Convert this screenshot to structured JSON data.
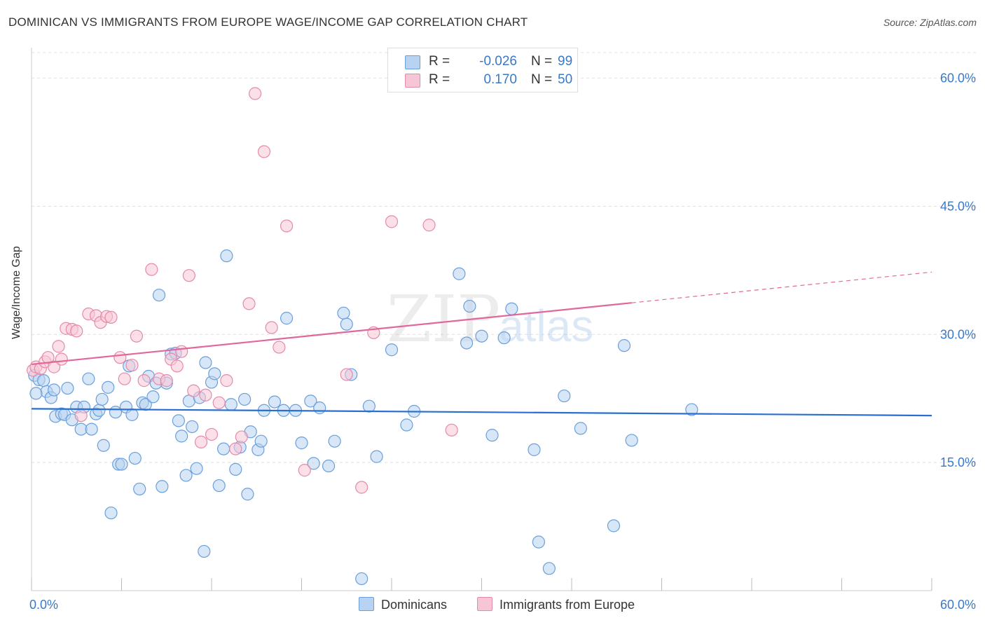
{
  "title": "DOMINICAN VS IMMIGRANTS FROM EUROPE WAGE/INCOME GAP CORRELATION CHART",
  "source": "Source: ZipAtlas.com",
  "watermark": {
    "part1": "ZIP",
    "part2": "atlas"
  },
  "correlation": {
    "rows": [
      {
        "r_label": "R =",
        "r_value": "-0.026",
        "n_label": "N =",
        "n_value": "99"
      },
      {
        "r_label": "R =",
        "r_value": "0.170",
        "n_label": "N =",
        "n_value": "50"
      }
    ]
  },
  "legend": {
    "items": [
      {
        "label": "Dominicans"
      },
      {
        "label": "Immigrants from Europe"
      }
    ]
  },
  "colors": {
    "blue_fill": "#b8d3f1",
    "blue_stroke": "#6a9fdc",
    "blue_line": "#2a6fd0",
    "pink_fill": "#f7c6d6",
    "pink_stroke": "#e58aaa",
    "pink_line": "#e0689a",
    "tick_text": "#3a78c9",
    "grid": "#e0e0e0"
  },
  "chart_data": {
    "type": "scatter",
    "title": "DOMINICAN VS IMMIGRANTS FROM EUROPE WAGE/INCOME GAP CORRELATION CHART",
    "xlabel": "",
    "ylabel": "Wage/Income Gap",
    "xlim": [
      0,
      60
    ],
    "ylim": [
      0,
      63
    ],
    "x_tick_labels": [
      "0.0%",
      "60.0%"
    ],
    "y_ticks": [
      15,
      30,
      45,
      60
    ],
    "y_tick_labels": [
      "15.0%",
      "30.0%",
      "45.0%",
      "60.0%"
    ],
    "grid": true,
    "legend_position": "bottom-center",
    "series": [
      {
        "name": "Dominicans",
        "color": "#6a9fdc",
        "trend": {
          "x": [
            0,
            60
          ],
          "y": [
            21.3,
            20.5
          ]
        },
        "points": [
          [
            0.2,
            25.2
          ],
          [
            0.5,
            24.7
          ],
          [
            0.8,
            24.6
          ],
          [
            1.0,
            23.3
          ],
          [
            1.3,
            22.6
          ],
          [
            1.5,
            23.5
          ],
          [
            1.6,
            20.4
          ],
          [
            2.0,
            20.7
          ],
          [
            2.2,
            20.6
          ],
          [
            2.4,
            23.7
          ],
          [
            2.7,
            20.0
          ],
          [
            3.0,
            21.5
          ],
          [
            3.3,
            18.9
          ],
          [
            3.5,
            21.5
          ],
          [
            3.8,
            24.8
          ],
          [
            4.0,
            18.9
          ],
          [
            4.3,
            20.7
          ],
          [
            4.5,
            21.1
          ],
          [
            4.7,
            22.4
          ],
          [
            4.8,
            17.0
          ],
          [
            5.1,
            23.8
          ],
          [
            5.3,
            9.1
          ],
          [
            5.6,
            20.9
          ],
          [
            5.8,
            14.8
          ],
          [
            6.0,
            14.8
          ],
          [
            6.3,
            21.5
          ],
          [
            6.5,
            26.3
          ],
          [
            6.7,
            20.6
          ],
          [
            6.9,
            15.5
          ],
          [
            7.2,
            11.9
          ],
          [
            7.4,
            22.0
          ],
          [
            7.6,
            21.8
          ],
          [
            7.8,
            25.1
          ],
          [
            8.1,
            22.7
          ],
          [
            8.3,
            24.3
          ],
          [
            8.5,
            34.6
          ],
          [
            8.7,
            12.2
          ],
          [
            9.0,
            24.3
          ],
          [
            9.3,
            27.7
          ],
          [
            9.6,
            27.8
          ],
          [
            9.8,
            19.9
          ],
          [
            10.0,
            18.1
          ],
          [
            10.3,
            13.5
          ],
          [
            10.5,
            22.2
          ],
          [
            10.7,
            19.2
          ],
          [
            11.0,
            14.3
          ],
          [
            11.2,
            22.6
          ],
          [
            11.5,
            4.6
          ],
          [
            11.6,
            26.7
          ],
          [
            12.0,
            24.4
          ],
          [
            12.2,
            25.4
          ],
          [
            12.5,
            12.3
          ],
          [
            12.8,
            16.6
          ],
          [
            13.0,
            39.2
          ],
          [
            13.3,
            21.8
          ],
          [
            13.6,
            14.2
          ],
          [
            13.9,
            16.8
          ],
          [
            14.2,
            22.4
          ],
          [
            14.4,
            11.3
          ],
          [
            14.6,
            18.6
          ],
          [
            15.1,
            16.5
          ],
          [
            15.3,
            17.5
          ],
          [
            15.5,
            21.1
          ],
          [
            16.2,
            22.1
          ],
          [
            16.8,
            21.1
          ],
          [
            17.0,
            31.9
          ],
          [
            17.6,
            21.1
          ],
          [
            18.0,
            17.3
          ],
          [
            18.6,
            22.2
          ],
          [
            18.8,
            14.9
          ],
          [
            19.2,
            21.4
          ],
          [
            19.8,
            14.6
          ],
          [
            20.2,
            17.5
          ],
          [
            20.8,
            32.5
          ],
          [
            21.0,
            31.2
          ],
          [
            21.3,
            25.3
          ],
          [
            22.0,
            1.4
          ],
          [
            22.5,
            21.6
          ],
          [
            23.0,
            15.7
          ],
          [
            24.0,
            28.2
          ],
          [
            25.0,
            19.4
          ],
          [
            25.5,
            21.0
          ],
          [
            28.5,
            37.1
          ],
          [
            29.0,
            29.0
          ],
          [
            29.2,
            33.3
          ],
          [
            30.0,
            29.8
          ],
          [
            30.7,
            18.2
          ],
          [
            31.5,
            29.6
          ],
          [
            32.0,
            33.0
          ],
          [
            33.5,
            16.5
          ],
          [
            33.8,
            5.7
          ],
          [
            34.5,
            2.6
          ],
          [
            35.5,
            22.8
          ],
          [
            36.6,
            19.0
          ],
          [
            38.8,
            7.6
          ],
          [
            39.5,
            28.7
          ],
          [
            40.0,
            17.6
          ],
          [
            44.0,
            21.2
          ],
          [
            0.3,
            23.1
          ]
        ]
      },
      {
        "name": "Immigrants from Europe",
        "color": "#e58aaa",
        "trend": {
          "x": [
            0,
            40
          ],
          "y": [
            26.5,
            33.7
          ]
        },
        "trend_extension": {
          "x": [
            40,
            60
          ],
          "y": [
            33.7,
            37.3
          ]
        },
        "points": [
          [
            0.1,
            25.8
          ],
          [
            0.3,
            26.2
          ],
          [
            0.6,
            26.0
          ],
          [
            0.9,
            26.8
          ],
          [
            1.1,
            27.3
          ],
          [
            1.5,
            26.2
          ],
          [
            1.8,
            28.6
          ],
          [
            2.0,
            27.1
          ],
          [
            2.3,
            30.7
          ],
          [
            2.7,
            30.6
          ],
          [
            3.0,
            30.4
          ],
          [
            3.3,
            20.5
          ],
          [
            3.8,
            32.4
          ],
          [
            4.3,
            32.2
          ],
          [
            4.6,
            31.4
          ],
          [
            5.0,
            32.1
          ],
          [
            5.3,
            32.0
          ],
          [
            5.9,
            27.3
          ],
          [
            6.2,
            24.8
          ],
          [
            6.7,
            26.4
          ],
          [
            7.0,
            29.8
          ],
          [
            7.5,
            24.6
          ],
          [
            8.0,
            37.6
          ],
          [
            8.5,
            24.8
          ],
          [
            9.0,
            24.6
          ],
          [
            9.3,
            27.1
          ],
          [
            9.7,
            26.3
          ],
          [
            10.0,
            28.0
          ],
          [
            10.5,
            36.9
          ],
          [
            10.8,
            23.4
          ],
          [
            11.3,
            17.4
          ],
          [
            11.6,
            22.9
          ],
          [
            12.0,
            18.3
          ],
          [
            12.5,
            22.0
          ],
          [
            13.0,
            24.6
          ],
          [
            13.6,
            16.6
          ],
          [
            14.0,
            18.0
          ],
          [
            14.5,
            33.6
          ],
          [
            14.9,
            58.2
          ],
          [
            15.5,
            51.4
          ],
          [
            16.0,
            30.8
          ],
          [
            16.5,
            28.5
          ],
          [
            17.0,
            42.7
          ],
          [
            18.2,
            14.1
          ],
          [
            21.0,
            25.3
          ],
          [
            22.0,
            12.1
          ],
          [
            22.8,
            30.2
          ],
          [
            24.0,
            43.2
          ],
          [
            26.5,
            42.8
          ],
          [
            28.0,
            18.8
          ]
        ]
      }
    ]
  }
}
